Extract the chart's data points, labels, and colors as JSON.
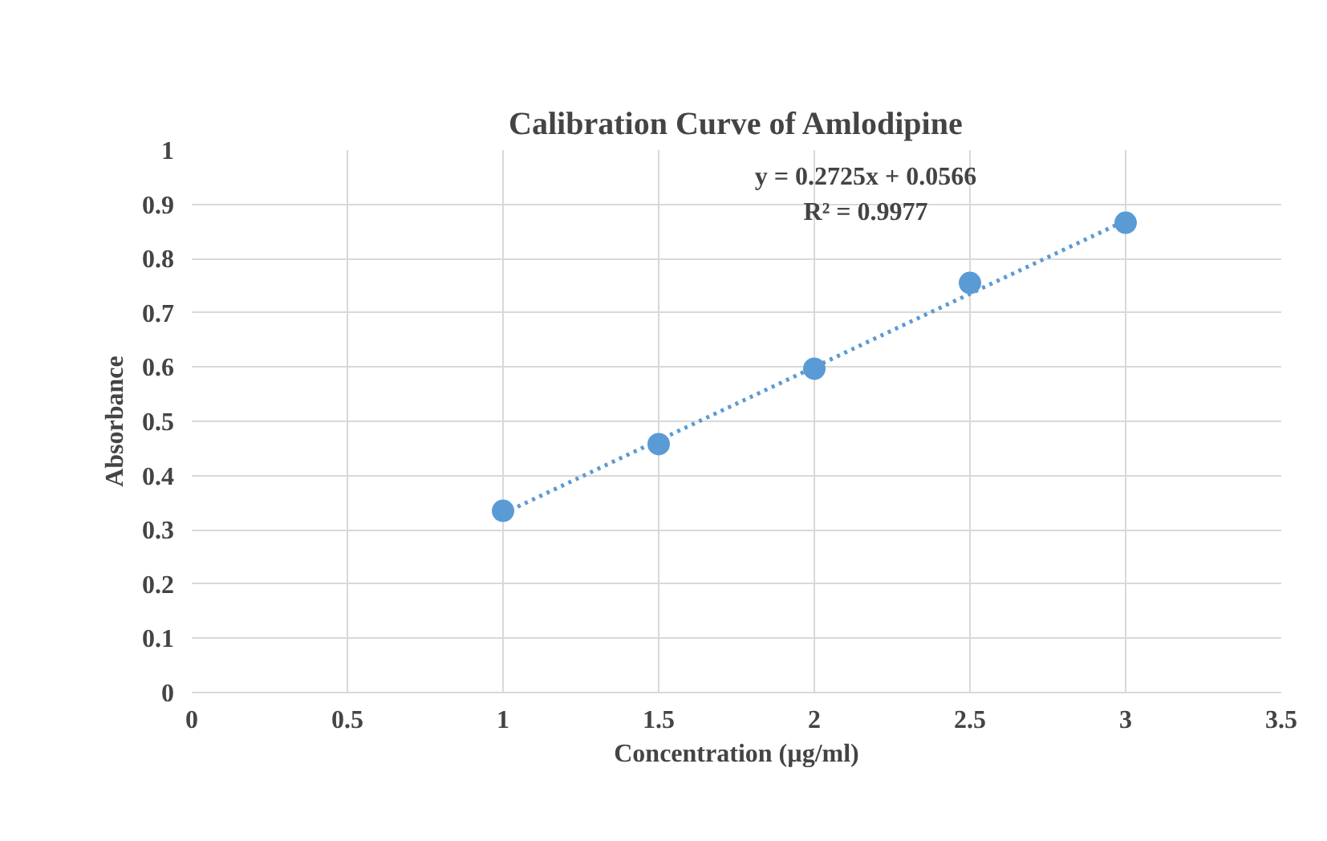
{
  "chart_data": {
    "type": "scatter",
    "title": "Calibration Curve of Amlodipine",
    "xlabel": "Concentration (µg/ml)",
    "ylabel": "Absorbance",
    "x": [
      1,
      1.5,
      2,
      2.5,
      3
    ],
    "series": [
      {
        "type": "scatter",
        "color": "#5b9bd5",
        "values": [
          0.335,
          0.458,
          0.597,
          0.755,
          0.866
        ],
        "marker": "circle"
      },
      {
        "type": "line",
        "color": "#5b9bd5",
        "x": [
          1,
          3
        ],
        "values": [
          0.33,
          0.87
        ],
        "line_style": "dotted",
        "marker": "none"
      }
    ],
    "xlim": [
      0,
      3.5
    ],
    "xticks": [
      0,
      0.5,
      1,
      1.5,
      2,
      2.5,
      3,
      3.5
    ],
    "ylim": [
      0,
      1
    ],
    "yticks": [
      0,
      0.1,
      0.2,
      0.3,
      0.4,
      0.5,
      0.6,
      0.7,
      0.8,
      0.9,
      1
    ],
    "grid": true,
    "annotations": [
      "y = 0.2725x + 0.0566",
      "R² = 0.9977"
    ]
  }
}
